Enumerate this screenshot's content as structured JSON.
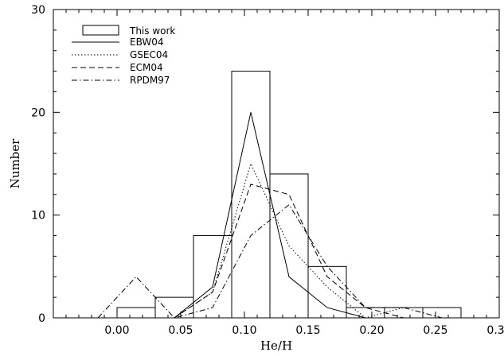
{
  "chart_data": {
    "type": "bar",
    "xlabel": "He/H",
    "ylabel": "Number",
    "xlim": [
      -0.05,
      0.3
    ],
    "ylim": [
      0,
      30
    ],
    "x_ticks": [
      "0.00",
      "0.05",
      "0.10",
      "0.15",
      "0.20",
      "0.25",
      "0.30"
    ],
    "x_tick_values": [
      0.0,
      0.05,
      0.1,
      0.15,
      0.2,
      0.25,
      0.3
    ],
    "y_ticks": [
      "0",
      "10",
      "20",
      "30"
    ],
    "y_tick_values": [
      0,
      10,
      20,
      30
    ],
    "legend_position": "top-left",
    "histogram": {
      "name": "This work",
      "bins": [
        {
          "from": 0.0,
          "to": 0.03,
          "value": 1
        },
        {
          "from": 0.03,
          "to": 0.06,
          "value": 2
        },
        {
          "from": 0.06,
          "to": 0.09,
          "value": 8
        },
        {
          "from": 0.09,
          "to": 0.12,
          "value": 24
        },
        {
          "from": 0.12,
          "to": 0.15,
          "value": 14
        },
        {
          "from": 0.15,
          "to": 0.18,
          "value": 5
        },
        {
          "from": 0.18,
          "to": 0.21,
          "value": 1
        },
        {
          "from": 0.21,
          "to": 0.24,
          "value": 1
        },
        {
          "from": 0.24,
          "to": 0.27,
          "value": 1
        }
      ]
    },
    "series": [
      {
        "name": "EBW04",
        "style": "solid",
        "x": [
          0.045,
          0.075,
          0.105,
          0.135,
          0.165,
          0.195,
          0.225
        ],
        "y": [
          0,
          3,
          20,
          4,
          1,
          0,
          0
        ]
      },
      {
        "name": "GSEC04",
        "style": "dotted",
        "x": [
          0.045,
          0.075,
          0.105,
          0.135,
          0.165,
          0.195,
          0.225
        ],
        "y": [
          0,
          2.5,
          15,
          7,
          3,
          0,
          1
        ]
      },
      {
        "name": "ECM04",
        "style": "dashed",
        "x": [
          0.045,
          0.075,
          0.105,
          0.135,
          0.165,
          0.195,
          0.225
        ],
        "y": [
          0,
          2.5,
          13,
          12,
          4,
          1,
          0
        ]
      },
      {
        "name": "RPDM97",
        "style": "dashdot",
        "x": [
          -0.015,
          0.015,
          0.045,
          0.075,
          0.105,
          0.135,
          0.165,
          0.195,
          0.225,
          0.255
        ],
        "y": [
          0,
          4,
          0,
          1,
          8,
          11,
          5,
          1,
          1,
          0
        ]
      }
    ]
  }
}
